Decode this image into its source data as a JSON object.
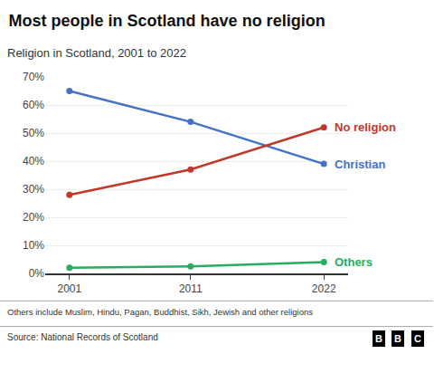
{
  "chart_data": {
    "type": "line",
    "title": "Most people in Scotland have no religion",
    "subtitle": "Religion in Scotland, 2001 to 2022",
    "x": [
      2001,
      2011,
      2022
    ],
    "series": [
      {
        "name": "Christian",
        "color": "#4472C4",
        "values": [
          65,
          54,
          39
        ]
      },
      {
        "name": "No religion",
        "color": "#C0392B",
        "values": [
          28,
          37,
          52
        ]
      },
      {
        "name": "Others",
        "color": "#27AE60",
        "values": [
          2,
          2.5,
          4
        ]
      }
    ],
    "xlim": [
      1999,
      2024
    ],
    "xticks": [
      2001,
      2011,
      2022
    ],
    "ylim": [
      0,
      70
    ],
    "yticks": [
      {
        "value": 0,
        "label": "0%"
      },
      {
        "value": 10,
        "label": "10%"
      },
      {
        "value": 20,
        "label": "20%"
      },
      {
        "value": 30,
        "label": "30%"
      },
      {
        "value": 40,
        "label": "40%"
      },
      {
        "value": 50,
        "label": "50%"
      },
      {
        "value": 60,
        "label": "60%"
      },
      {
        "value": 70,
        "label": "70%"
      }
    ],
    "grid": "y",
    "marker": "circle",
    "line_style": "solid",
    "footnote": "Others include Muslim, Hindu, Pagan, Buddhist, Sikh, Jewish and other religions",
    "source": "Source: National Records of Scotland",
    "logo": "BBC"
  }
}
